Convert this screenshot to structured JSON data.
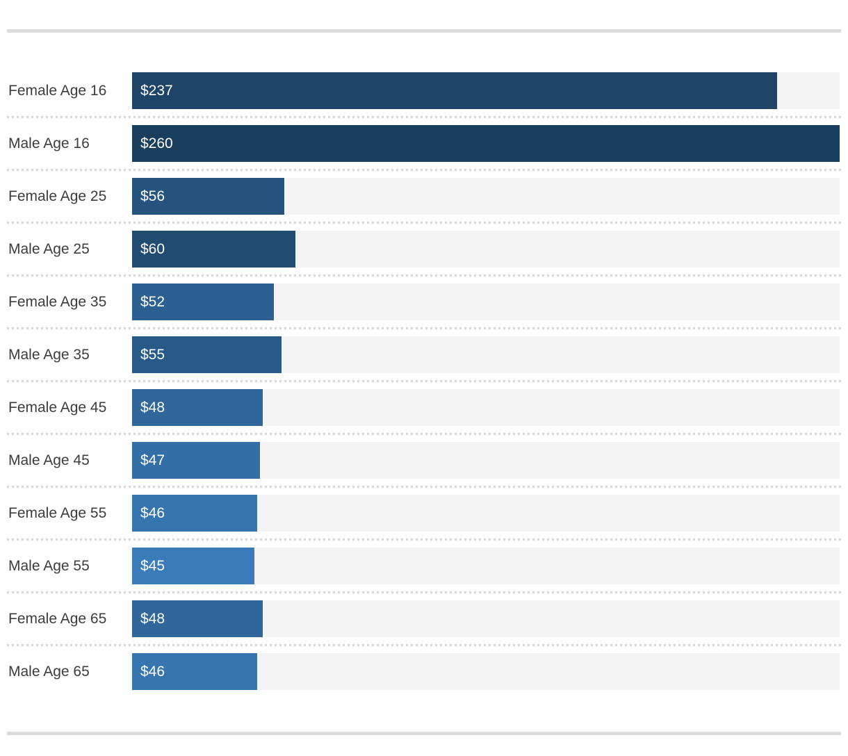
{
  "chart_data": {
    "type": "bar",
    "orientation": "horizontal",
    "title": "",
    "xlabel": "",
    "ylabel": "",
    "xlim": [
      0,
      260
    ],
    "grid": false,
    "legend": "none",
    "value_prefix": "$",
    "value_label_position": "inside-left",
    "categories": [
      "Female Age 16",
      "Male Age 16",
      "Female Age 25",
      "Male Age 25",
      "Female Age 35",
      "Male Age 35",
      "Female Age 45",
      "Male Age 45",
      "Female Age 55",
      "Male Age 55",
      "Female Age 65",
      "Male Age 65"
    ],
    "values": [
      237,
      260,
      56,
      60,
      52,
      55,
      48,
      47,
      46,
      45,
      48,
      46
    ],
    "display_values": [
      "$237",
      "$260",
      "$56",
      "$60",
      "$52",
      "$55",
      "$48",
      "$47",
      "$46",
      "$45",
      "$48",
      "$46"
    ],
    "bar_colors": [
      "#1E4568",
      "#1A3E5E",
      "#25537D",
      "#214C72",
      "#2C6091",
      "#285A87",
      "#2F679B",
      "#336EA6",
      "#3675B0",
      "#3A7CBA",
      "#2F679B",
      "#3675B0"
    ]
  },
  "theme": {
    "background": "#ffffff",
    "rule_color": "#dcdcdc",
    "separator_dot_color": "#d6d6d6",
    "track_color": "#f3f3f3",
    "category_label_color": "#3c3c3c",
    "value_label_color": "#ffffff"
  }
}
